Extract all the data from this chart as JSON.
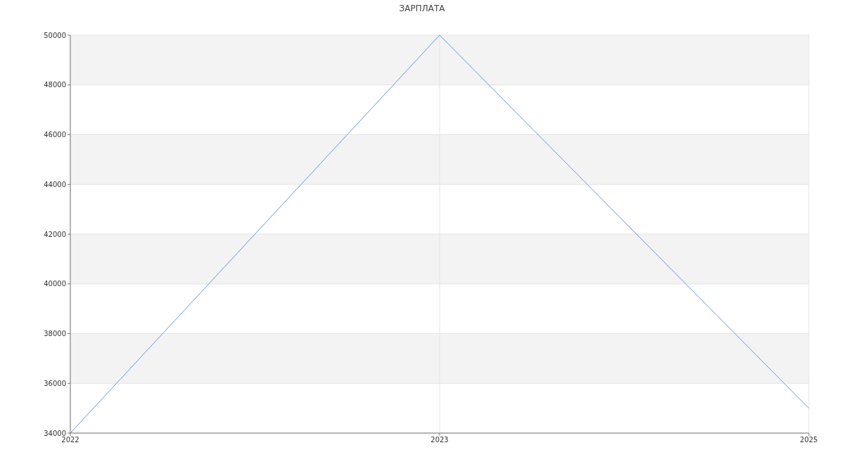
{
  "chart_data": {
    "type": "line",
    "title": "ЗАРПЛАТА",
    "categories": [
      "2022",
      "2023",
      "2025"
    ],
    "series": [
      {
        "color": "#6495ed",
        "values": [
          34000,
          50000,
          35000
        ]
      }
    ],
    "ylim": [
      34000,
      50000
    ],
    "yticks": [
      34000,
      36000,
      38000,
      40000,
      42000,
      44000,
      46000,
      48000,
      50000
    ],
    "grid": true
  }
}
